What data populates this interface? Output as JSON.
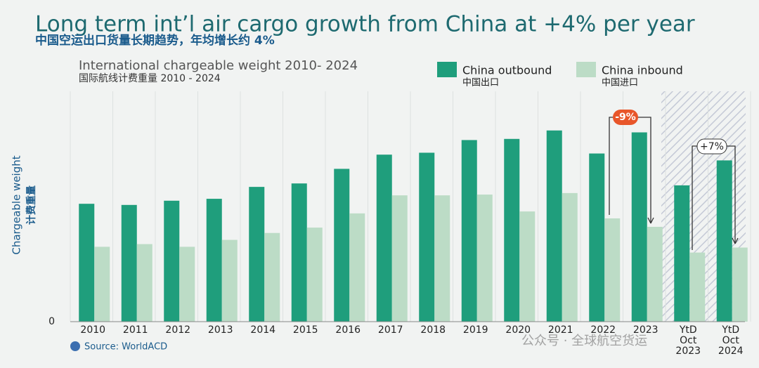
{
  "chart_data": {
    "type": "bar",
    "title": "Long term int’l air cargo growth from China at +4% per year",
    "subtitle": "中国空运出口货量长期趋势，年均增长约 4%",
    "chart_title": "International chargeable weight 2010- 2024",
    "chart_subtitle": "国际航线计费重量 2010 - 2024",
    "y_label": "Chargeable weight",
    "y_label_zh": "计费重量",
    "categories": [
      "2010",
      "2011",
      "2012",
      "2013",
      "2014",
      "2015",
      "2016",
      "2017",
      "2018",
      "2019",
      "2020",
      "2021",
      "2022",
      "2023",
      "YtD Oct 2023",
      "YtD Oct 2024"
    ],
    "series": [
      {
        "name": "China outbound",
        "name_zh": "中国出口",
        "color": "#1f9e7c",
        "values": [
          3.07,
          3.04,
          3.15,
          3.2,
          3.51,
          3.6,
          3.98,
          4.35,
          4.4,
          4.73,
          4.76,
          4.98,
          4.38,
          4.93,
          3.55,
          4.2
        ]
      },
      {
        "name": "China inbound",
        "name_zh": "中国进口",
        "color": "#bcdcc6",
        "values": [
          1.95,
          2.02,
          1.95,
          2.13,
          2.31,
          2.45,
          2.82,
          3.29,
          3.29,
          3.31,
          2.87,
          3.35,
          2.69,
          2.47,
          1.8,
          1.93
        ]
      }
    ],
    "ylim": [
      0,
      6
    ],
    "yticks": [
      0
    ],
    "annotations": [
      "-9%",
      "+7%"
    ],
    "source": "Source: WorldACD",
    "watermark": "公众号 · 全球航空货运"
  }
}
